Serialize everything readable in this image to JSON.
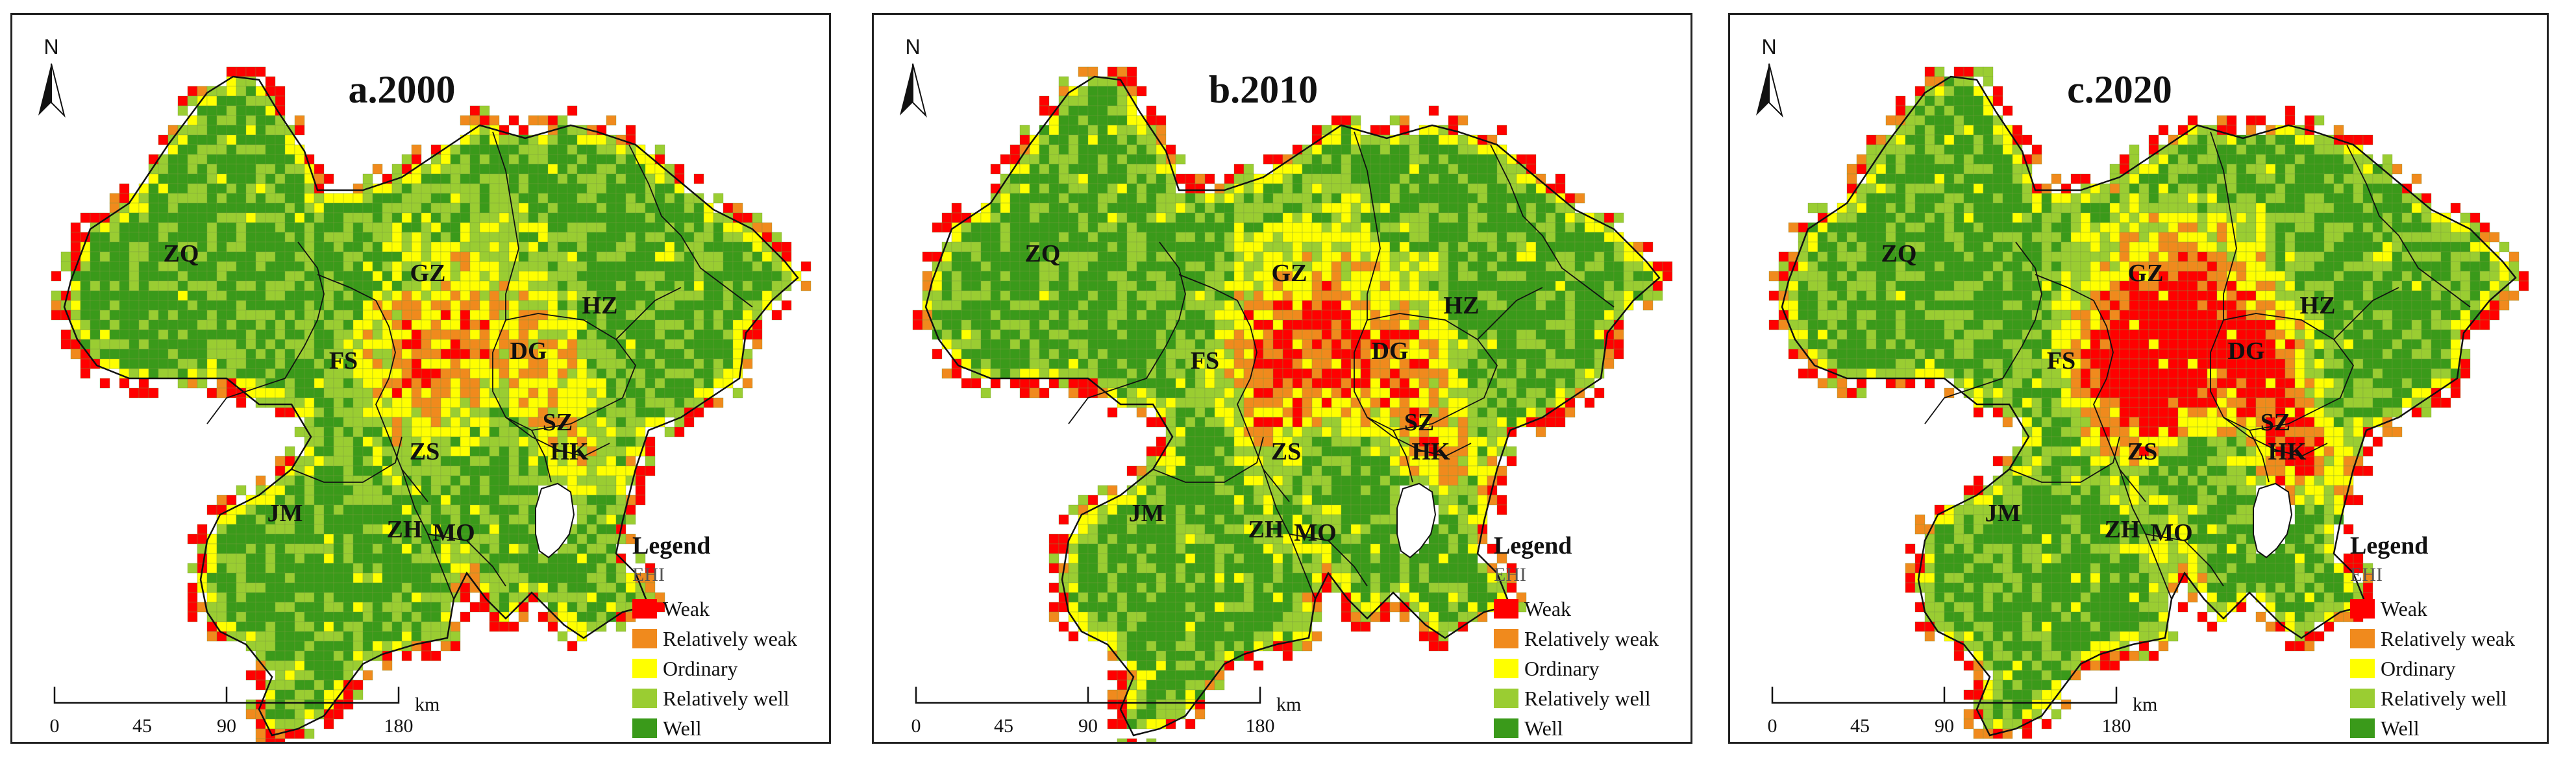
{
  "panels": [
    {
      "title": "a.2000",
      "shade": 0.0
    },
    {
      "title": "b.2010",
      "shade": 0.12
    },
    {
      "title": "c.2020",
      "shade": 0.3
    }
  ],
  "north_label": "N",
  "regions": [
    {
      "label": "ZQ"
    },
    {
      "label": "GZ"
    },
    {
      "label": "HZ"
    },
    {
      "label": "FS"
    },
    {
      "label": "DG"
    },
    {
      "label": "SZ"
    },
    {
      "label": "HK"
    },
    {
      "label": "ZS"
    },
    {
      "label": "JM"
    },
    {
      "label": "ZH"
    },
    {
      "label": "MO"
    }
  ],
  "legend": {
    "title": "Legend",
    "subtitle": "EHI",
    "items": [
      {
        "label": "Weak",
        "color": "#ff0000"
      },
      {
        "label": "Relatively weak",
        "color": "#f08a1d"
      },
      {
        "label": "Ordinary",
        "color": "#ffff00"
      },
      {
        "label": "Relatively well",
        "color": "#9acd32"
      },
      {
        "label": "Well",
        "color": "#3a9a1a"
      }
    ]
  },
  "scale": {
    "ticks": [
      "0",
      "45",
      "90",
      "180"
    ],
    "unit": "km"
  }
}
